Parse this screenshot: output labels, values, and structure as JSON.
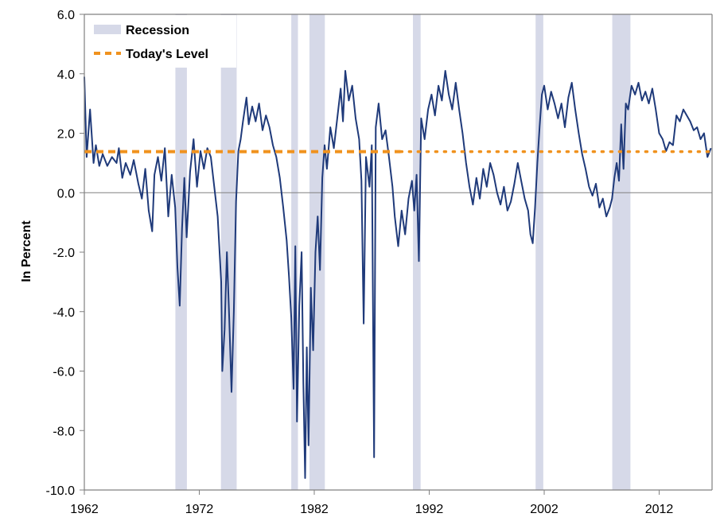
{
  "chart_data": {
    "type": "line",
    "title": "",
    "xlabel": "",
    "ylabel": "In Percent",
    "xlim": [
      1962,
      2016.6
    ],
    "ylim": [
      -10,
      6
    ],
    "x_ticks": [
      1962,
      1972,
      1982,
      1992,
      2002,
      2012
    ],
    "y_ticks": [
      6,
      4,
      2,
      0,
      -2,
      -4,
      -6,
      -8,
      -10
    ],
    "y_tick_labels": [
      "6.0",
      "4.0",
      "2.0",
      "0.0",
      "-2.0",
      "-4.0",
      "-6.0",
      "-8.0",
      "-10.0"
    ],
    "grid": false,
    "legend": {
      "placement": "top-left",
      "entries": [
        "Recession",
        "Today's Level"
      ]
    },
    "colors": {
      "line": "#1f3a7a",
      "recession": "#d6d9e8",
      "today": "#f0921e",
      "axis": "#808080"
    },
    "recessions": [
      {
        "start": 1969.92,
        "end": 1970.92
      },
      {
        "start": 1973.88,
        "end": 1975.25
      },
      {
        "start": 1980.0,
        "end": 1980.58
      },
      {
        "start": 1981.58,
        "end": 1982.92
      },
      {
        "start": 1990.58,
        "end": 1991.25
      },
      {
        "start": 2001.25,
        "end": 2001.92
      },
      {
        "start": 2007.92,
        "end": 2009.5
      }
    ],
    "today_level": 1.38,
    "series": [
      {
        "values": [
          [
            1962.0,
            3.9
          ],
          [
            1962.2,
            1.2
          ],
          [
            1962.5,
            2.8
          ],
          [
            1962.8,
            1.0
          ],
          [
            1963.0,
            1.6
          ],
          [
            1963.3,
            0.9
          ],
          [
            1963.6,
            1.3
          ],
          [
            1964.0,
            0.9
          ],
          [
            1964.4,
            1.2
          ],
          [
            1964.8,
            1.0
          ],
          [
            1965.0,
            1.5
          ],
          [
            1965.3,
            0.5
          ],
          [
            1965.6,
            1.0
          ],
          [
            1966.0,
            0.6
          ],
          [
            1966.3,
            1.1
          ],
          [
            1966.7,
            0.3
          ],
          [
            1967.0,
            -0.2
          ],
          [
            1967.3,
            0.8
          ],
          [
            1967.6,
            -0.6
          ],
          [
            1967.9,
            -1.3
          ],
          [
            1968.1,
            0.6
          ],
          [
            1968.4,
            1.2
          ],
          [
            1968.7,
            0.4
          ],
          [
            1969.0,
            1.5
          ],
          [
            1969.3,
            -0.8
          ],
          [
            1969.6,
            0.6
          ],
          [
            1969.9,
            -0.5
          ],
          [
            1970.1,
            -2.5
          ],
          [
            1970.3,
            -3.8
          ],
          [
            1970.5,
            -1.2
          ],
          [
            1970.7,
            0.5
          ],
          [
            1970.9,
            -1.5
          ],
          [
            1971.2,
            0.7
          ],
          [
            1971.5,
            1.8
          ],
          [
            1971.8,
            0.2
          ],
          [
            1972.1,
            1.4
          ],
          [
            1972.4,
            0.8
          ],
          [
            1972.7,
            1.5
          ],
          [
            1973.0,
            1.2
          ],
          [
            1973.3,
            0.2
          ],
          [
            1973.6,
            -0.8
          ],
          [
            1973.9,
            -3.0
          ],
          [
            1974.0,
            -6.0
          ],
          [
            1974.2,
            -4.6
          ],
          [
            1974.4,
            -2.0
          ],
          [
            1974.6,
            -4.2
          ],
          [
            1974.8,
            -6.7
          ],
          [
            1975.0,
            -4.0
          ],
          [
            1975.2,
            -0.3
          ],
          [
            1975.4,
            1.4
          ],
          [
            1975.6,
            1.8
          ],
          [
            1975.8,
            2.4
          ],
          [
            1976.1,
            3.2
          ],
          [
            1976.3,
            2.3
          ],
          [
            1976.6,
            2.9
          ],
          [
            1976.9,
            2.4
          ],
          [
            1977.2,
            3.0
          ],
          [
            1977.5,
            2.1
          ],
          [
            1977.8,
            2.6
          ],
          [
            1978.1,
            2.2
          ],
          [
            1978.4,
            1.6
          ],
          [
            1978.7,
            1.2
          ],
          [
            1979.0,
            0.5
          ],
          [
            1979.3,
            -0.5
          ],
          [
            1979.6,
            -1.6
          ],
          [
            1979.8,
            -2.8
          ],
          [
            1980.0,
            -4.2
          ],
          [
            1980.2,
            -6.6
          ],
          [
            1980.35,
            -1.8
          ],
          [
            1980.5,
            -7.7
          ],
          [
            1980.7,
            -3.8
          ],
          [
            1980.9,
            -2.0
          ],
          [
            1981.05,
            -6.4
          ],
          [
            1981.2,
            -9.6
          ],
          [
            1981.35,
            -5.2
          ],
          [
            1981.5,
            -8.5
          ],
          [
            1981.7,
            -3.2
          ],
          [
            1981.9,
            -5.3
          ],
          [
            1982.1,
            -2.0
          ],
          [
            1982.3,
            -0.8
          ],
          [
            1982.5,
            -2.6
          ],
          [
            1982.7,
            0.5
          ],
          [
            1982.9,
            1.6
          ],
          [
            1983.1,
            0.8
          ],
          [
            1983.4,
            2.2
          ],
          [
            1983.7,
            1.5
          ],
          [
            1984.0,
            2.5
          ],
          [
            1984.3,
            3.5
          ],
          [
            1984.5,
            2.4
          ],
          [
            1984.7,
            4.1
          ],
          [
            1985.0,
            3.1
          ],
          [
            1985.3,
            3.6
          ],
          [
            1985.6,
            2.5
          ],
          [
            1985.9,
            1.8
          ],
          [
            1986.1,
            0.4
          ],
          [
            1986.3,
            -4.4
          ],
          [
            1986.5,
            1.2
          ],
          [
            1986.8,
            0.2
          ],
          [
            1987.0,
            1.6
          ],
          [
            1987.2,
            -8.9
          ],
          [
            1987.35,
            2.2
          ],
          [
            1987.6,
            3.0
          ],
          [
            1987.9,
            1.8
          ],
          [
            1988.2,
            2.1
          ],
          [
            1988.5,
            1.2
          ],
          [
            1988.8,
            0.2
          ],
          [
            1989.0,
            -0.8
          ],
          [
            1989.3,
            -1.8
          ],
          [
            1989.6,
            -0.6
          ],
          [
            1989.9,
            -1.4
          ],
          [
            1990.2,
            -0.2
          ],
          [
            1990.5,
            0.4
          ],
          [
            1990.7,
            -0.6
          ],
          [
            1990.9,
            0.6
          ],
          [
            1991.1,
            -2.3
          ],
          [
            1991.3,
            2.5
          ],
          [
            1991.6,
            1.8
          ],
          [
            1991.9,
            2.8
          ],
          [
            1992.2,
            3.3
          ],
          [
            1992.5,
            2.6
          ],
          [
            1992.8,
            3.6
          ],
          [
            1993.1,
            3.1
          ],
          [
            1993.4,
            4.1
          ],
          [
            1993.7,
            3.3
          ],
          [
            1994.0,
            2.8
          ],
          [
            1994.3,
            3.7
          ],
          [
            1994.6,
            2.8
          ],
          [
            1994.9,
            2.0
          ],
          [
            1995.2,
            1.0
          ],
          [
            1995.5,
            0.2
          ],
          [
            1995.8,
            -0.4
          ],
          [
            1996.1,
            0.5
          ],
          [
            1996.4,
            -0.2
          ],
          [
            1996.7,
            0.8
          ],
          [
            1997.0,
            0.2
          ],
          [
            1997.3,
            1.0
          ],
          [
            1997.6,
            0.6
          ],
          [
            1997.9,
            0.0
          ],
          [
            1998.2,
            -0.4
          ],
          [
            1998.5,
            0.2
          ],
          [
            1998.8,
            -0.6
          ],
          [
            1999.1,
            -0.3
          ],
          [
            1999.4,
            0.3
          ],
          [
            1999.7,
            1.0
          ],
          [
            2000.0,
            0.4
          ],
          [
            2000.3,
            -0.2
          ],
          [
            2000.6,
            -0.6
          ],
          [
            2000.8,
            -1.4
          ],
          [
            2001.0,
            -1.7
          ],
          [
            2001.2,
            -0.5
          ],
          [
            2001.4,
            1.0
          ],
          [
            2001.6,
            2.2
          ],
          [
            2001.8,
            3.3
          ],
          [
            2002.0,
            3.6
          ],
          [
            2002.3,
            2.8
          ],
          [
            2002.6,
            3.4
          ],
          [
            2002.9,
            3.0
          ],
          [
            2003.2,
            2.5
          ],
          [
            2003.5,
            3.0
          ],
          [
            2003.8,
            2.2
          ],
          [
            2004.1,
            3.2
          ],
          [
            2004.4,
            3.7
          ],
          [
            2004.7,
            2.8
          ],
          [
            2005.0,
            2.0
          ],
          [
            2005.3,
            1.3
          ],
          [
            2005.6,
            0.8
          ],
          [
            2005.9,
            0.2
          ],
          [
            2006.2,
            -0.1
          ],
          [
            2006.5,
            0.3
          ],
          [
            2006.8,
            -0.5
          ],
          [
            2007.1,
            -0.2
          ],
          [
            2007.4,
            -0.8
          ],
          [
            2007.7,
            -0.5
          ],
          [
            2007.9,
            -0.2
          ],
          [
            2008.1,
            0.5
          ],
          [
            2008.3,
            1.0
          ],
          [
            2008.5,
            0.4
          ],
          [
            2008.7,
            2.3
          ],
          [
            2008.9,
            0.8
          ],
          [
            2009.1,
            3.0
          ],
          [
            2009.3,
            2.8
          ],
          [
            2009.6,
            3.6
          ],
          [
            2009.9,
            3.3
          ],
          [
            2010.2,
            3.7
          ],
          [
            2010.5,
            3.1
          ],
          [
            2010.8,
            3.4
          ],
          [
            2011.1,
            3.0
          ],
          [
            2011.4,
            3.5
          ],
          [
            2011.7,
            2.8
          ],
          [
            2012.0,
            2.0
          ],
          [
            2012.3,
            1.8
          ],
          [
            2012.6,
            1.4
          ],
          [
            2012.9,
            1.7
          ],
          [
            2013.2,
            1.6
          ],
          [
            2013.5,
            2.6
          ],
          [
            2013.8,
            2.4
          ],
          [
            2014.1,
            2.8
          ],
          [
            2014.4,
            2.6
          ],
          [
            2014.7,
            2.4
          ],
          [
            2015.0,
            2.1
          ],
          [
            2015.3,
            2.2
          ],
          [
            2015.6,
            1.8
          ],
          [
            2015.9,
            2.0
          ],
          [
            2016.2,
            1.2
          ],
          [
            2016.5,
            1.5
          ]
        ]
      }
    ]
  }
}
